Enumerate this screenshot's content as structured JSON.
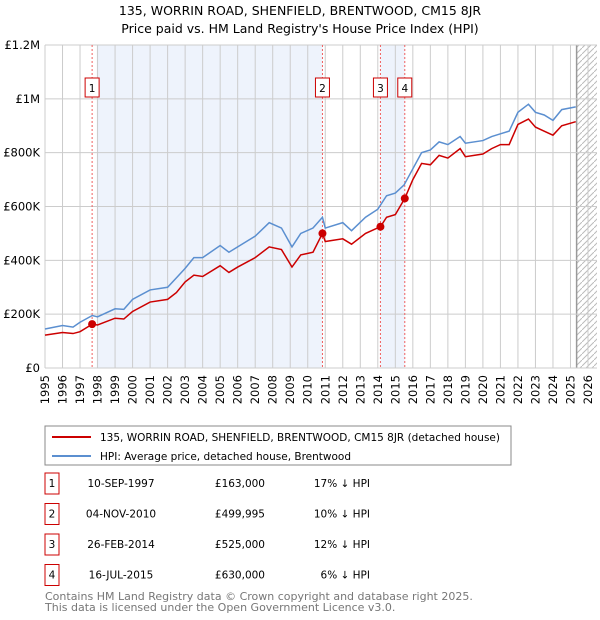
{
  "chart_data": {
    "type": "line",
    "title": "135, WORRIN ROAD, SHENFIELD, BRENTWOOD, CM15 8JR",
    "subtitle": "Price paid vs. HM Land Registry's House Price Index (HPI)",
    "xlim": [
      1995,
      2026
    ],
    "ylim": [
      0,
      1200000
    ],
    "x_ticks": [
      "1995",
      "1996",
      "1997",
      "1998",
      "1999",
      "2000",
      "2001",
      "2002",
      "2003",
      "2004",
      "2005",
      "2006",
      "2007",
      "2008",
      "2009",
      "2010",
      "2011",
      "2012",
      "2013",
      "2014",
      "2015",
      "2016",
      "2017",
      "2018",
      "2019",
      "2020",
      "2021",
      "2022",
      "2023",
      "2024",
      "2025",
      "2026"
    ],
    "y_ticks": [
      {
        "v": 0,
        "label": "£0"
      },
      {
        "v": 200000,
        "label": "£200K"
      },
      {
        "v": 400000,
        "label": "£400K"
      },
      {
        "v": 600000,
        "label": "£600K"
      },
      {
        "v": 800000,
        "label": "£800K"
      },
      {
        "v": 1000000,
        "label": "£1M"
      },
      {
        "v": 1200000,
        "label": "£1.2M"
      }
    ],
    "grid": true,
    "shaded_ranges": [
      [
        1997.95,
        2010.84
      ],
      [
        2014.15,
        2015.54
      ]
    ],
    "forecast_from": 2025.35,
    "series": [
      {
        "name": "135, WORRIN ROAD, SHENFIELD, BRENTWOOD, CM15 8JR (detached house)",
        "color": "#cc0000",
        "points": [
          [
            1995,
            122000
          ],
          [
            1996,
            132000
          ],
          [
            1996.6,
            128000
          ],
          [
            1997,
            135000
          ],
          [
            1997.7,
            163000
          ],
          [
            1998,
            160000
          ],
          [
            1999,
            185000
          ],
          [
            1999.5,
            182000
          ],
          [
            2000,
            210000
          ],
          [
            2001,
            245000
          ],
          [
            2002,
            255000
          ],
          [
            2002.5,
            280000
          ],
          [
            2003,
            320000
          ],
          [
            2003.5,
            345000
          ],
          [
            2004,
            340000
          ],
          [
            2005,
            380000
          ],
          [
            2005.5,
            355000
          ],
          [
            2006,
            375000
          ],
          [
            2007,
            410000
          ],
          [
            2007.8,
            450000
          ],
          [
            2008.5,
            440000
          ],
          [
            2009.1,
            375000
          ],
          [
            2009.6,
            420000
          ],
          [
            2010.3,
            430000
          ],
          [
            2010.84,
            500000
          ],
          [
            2011,
            470000
          ],
          [
            2012,
            480000
          ],
          [
            2012.5,
            460000
          ],
          [
            2013.3,
            500000
          ],
          [
            2014.15,
            525000
          ],
          [
            2014.5,
            560000
          ],
          [
            2015,
            570000
          ],
          [
            2015.54,
            630000
          ],
          [
            2016,
            700000
          ],
          [
            2016.5,
            760000
          ],
          [
            2017,
            755000
          ],
          [
            2017.5,
            790000
          ],
          [
            2018,
            780000
          ],
          [
            2018.7,
            815000
          ],
          [
            2019,
            785000
          ],
          [
            2020,
            795000
          ],
          [
            2020.5,
            815000
          ],
          [
            2021,
            830000
          ],
          [
            2021.5,
            830000
          ],
          [
            2022,
            905000
          ],
          [
            2022.6,
            925000
          ],
          [
            2023,
            895000
          ],
          [
            2023.5,
            880000
          ],
          [
            2024,
            865000
          ],
          [
            2024.5,
            900000
          ],
          [
            2025.3,
            915000
          ]
        ]
      },
      {
        "name": "HPI: Average price, detached house, Brentwood",
        "color": "#5b8fd0",
        "points": [
          [
            1995,
            145000
          ],
          [
            1996,
            158000
          ],
          [
            1996.6,
            152000
          ],
          [
            1997,
            170000
          ],
          [
            1997.7,
            195000
          ],
          [
            1998,
            190000
          ],
          [
            1999,
            220000
          ],
          [
            1999.5,
            218000
          ],
          [
            2000,
            255000
          ],
          [
            2001,
            290000
          ],
          [
            2002,
            300000
          ],
          [
            2002.5,
            335000
          ],
          [
            2003,
            370000
          ],
          [
            2003.5,
            410000
          ],
          [
            2004,
            410000
          ],
          [
            2005,
            455000
          ],
          [
            2005.5,
            430000
          ],
          [
            2006,
            450000
          ],
          [
            2007,
            490000
          ],
          [
            2007.8,
            540000
          ],
          [
            2008.5,
            520000
          ],
          [
            2009.1,
            450000
          ],
          [
            2009.6,
            500000
          ],
          [
            2010.3,
            520000
          ],
          [
            2010.84,
            560000
          ],
          [
            2011,
            520000
          ],
          [
            2012,
            540000
          ],
          [
            2012.5,
            510000
          ],
          [
            2013.3,
            560000
          ],
          [
            2014,
            590000
          ],
          [
            2014.5,
            640000
          ],
          [
            2015,
            650000
          ],
          [
            2015.5,
            680000
          ],
          [
            2016,
            740000
          ],
          [
            2016.5,
            800000
          ],
          [
            2017,
            810000
          ],
          [
            2017.5,
            840000
          ],
          [
            2018,
            830000
          ],
          [
            2018.7,
            860000
          ],
          [
            2019,
            835000
          ],
          [
            2020,
            845000
          ],
          [
            2020.5,
            860000
          ],
          [
            2021,
            870000
          ],
          [
            2021.5,
            880000
          ],
          [
            2022,
            950000
          ],
          [
            2022.6,
            980000
          ],
          [
            2023,
            950000
          ],
          [
            2023.5,
            940000
          ],
          [
            2024,
            920000
          ],
          [
            2024.5,
            960000
          ],
          [
            2025.3,
            970000
          ]
        ]
      }
    ],
    "sales": [
      {
        "n": "1",
        "x": 1997.69,
        "y": 163000,
        "date": "10-SEP-1997",
        "price": "£163,000",
        "hpi": "17% ↓ HPI"
      },
      {
        "n": "2",
        "x": 2010.84,
        "y": 499995,
        "date": "04-NOV-2010",
        "price": "£499,995",
        "hpi": "10% ↓ HPI"
      },
      {
        "n": "3",
        "x": 2014.15,
        "y": 525000,
        "date": "26-FEB-2014",
        "price": "£525,000",
        "hpi": "12% ↓ HPI"
      },
      {
        "n": "4",
        "x": 2015.54,
        "y": 630000,
        "date": "16-JUL-2015",
        "price": "£630,000",
        "hpi": "6% ↓ HPI"
      }
    ]
  },
  "footer": {
    "line1": "Contains HM Land Registry data © Crown copyright and database right 2025.",
    "line2": "This data is licensed under the Open Government Licence v3.0."
  }
}
